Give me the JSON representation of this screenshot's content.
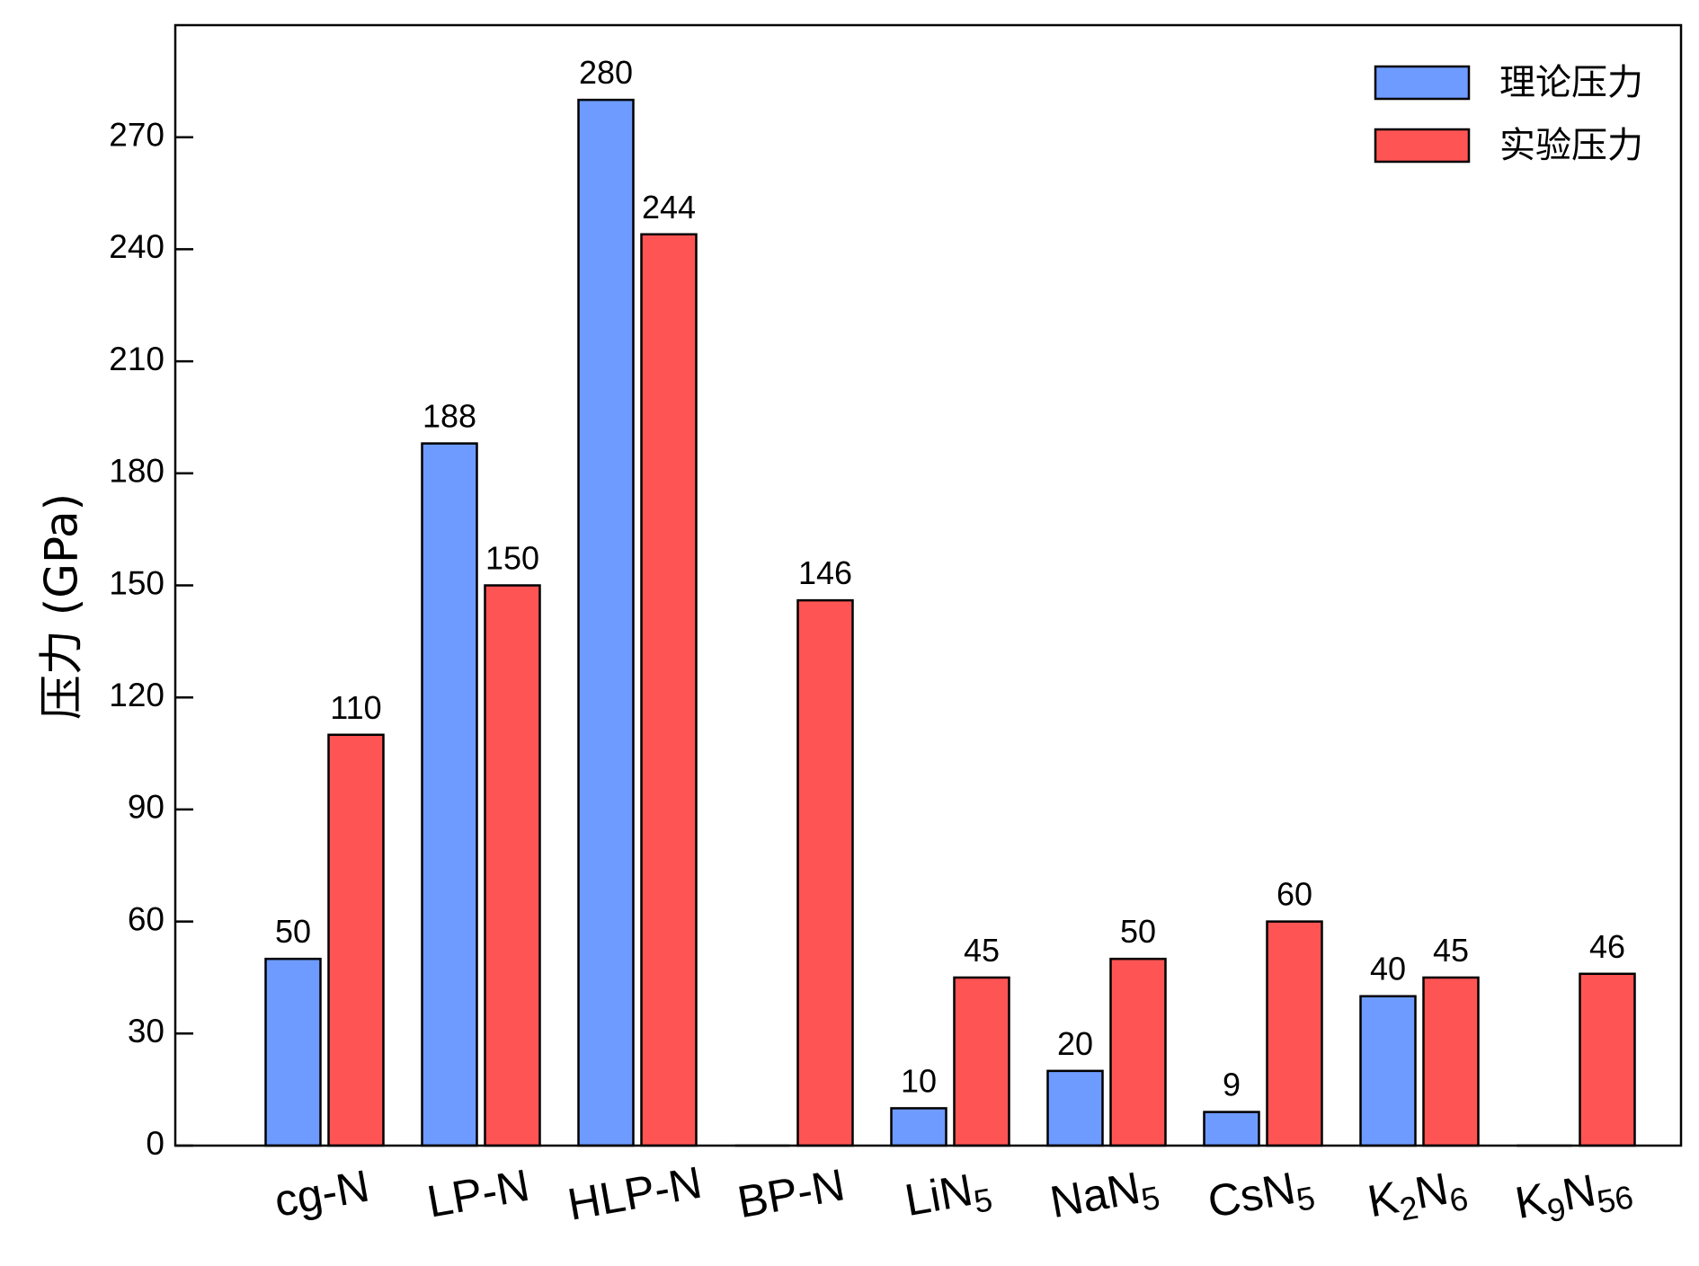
{
  "chart_data": {
    "type": "bar",
    "title": "",
    "xlabel": "",
    "ylabel": "压力 (GPa)",
    "ylim": [
      0,
      300
    ],
    "yticks": [
      0,
      30,
      60,
      90,
      120,
      150,
      180,
      210,
      240,
      270
    ],
    "legend_position": "top-right",
    "grid": false,
    "categories": [
      {
        "base": "cg-N",
        "sub": ""
      },
      {
        "base": "LP-N",
        "sub": ""
      },
      {
        "base": "HLP-N",
        "sub": ""
      },
      {
        "base": "BP-N",
        "sub": ""
      },
      {
        "parts": [
          {
            "t": "LiN",
            "sub": false
          },
          {
            "t": "5",
            "sub": true
          }
        ]
      },
      {
        "parts": [
          {
            "t": "NaN",
            "sub": false
          },
          {
            "t": "5",
            "sub": true
          }
        ]
      },
      {
        "parts": [
          {
            "t": "CsN",
            "sub": false
          },
          {
            "t": "5",
            "sub": true
          }
        ]
      },
      {
        "parts": [
          {
            "t": "K",
            "sub": false
          },
          {
            "t": "2",
            "sub": true
          },
          {
            "t": "N",
            "sub": false
          },
          {
            "t": "6",
            "sub": true
          }
        ]
      },
      {
        "parts": [
          {
            "t": "K",
            "sub": false
          },
          {
            "t": "9",
            "sub": true
          },
          {
            "t": "N",
            "sub": false
          },
          {
            "t": "56",
            "sub": true
          }
        ]
      }
    ],
    "series": [
      {
        "name": "理论压力",
        "color": "#6e9bff",
        "values": [
          50,
          188,
          280,
          0,
          10,
          20,
          9,
          40,
          0
        ],
        "labels": [
          "50",
          "188",
          "280",
          "",
          "10",
          "20",
          "9",
          "40",
          ""
        ]
      },
      {
        "name": "实验压力",
        "color": "#ff5454",
        "values": [
          110,
          150,
          244,
          146,
          45,
          50,
          60,
          45,
          46
        ],
        "labels": [
          "110",
          "150",
          "244",
          "146",
          "45",
          "50",
          "60",
          "45",
          "46"
        ]
      }
    ]
  }
}
